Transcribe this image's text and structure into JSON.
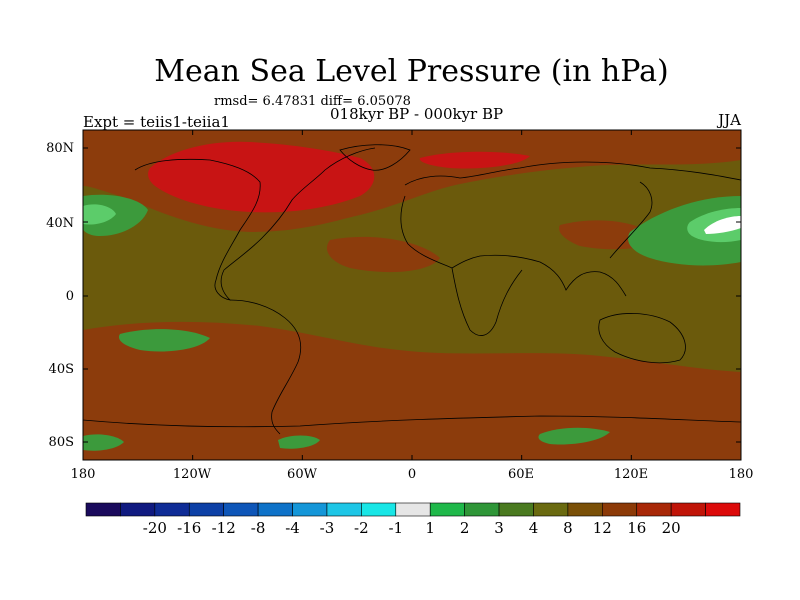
{
  "title": "Mean Sea Level Pressure (in hPa)",
  "stats": "rmsd= 6.47831 diff= 6.05078",
  "period": "018kyr BP - 000kyr BP",
  "experiment": "Expt = teiis1-teiia1",
  "season": "JJA",
  "lat_ticks": [
    "80N",
    "40N",
    "0",
    "40S",
    "80S"
  ],
  "lon_ticks": [
    "180",
    "120W",
    "60W",
    "0",
    "60E",
    "120E",
    "180"
  ],
  "colorbar": {
    "labels": [
      "-20",
      "-16",
      "-12",
      "-8",
      "-4",
      "-3",
      "-2",
      "-1",
      "1",
      "2",
      "3",
      "4",
      "8",
      "12",
      "16",
      "20"
    ],
    "colors": [
      "#1a0a5c",
      "#101a80",
      "#0f2c96",
      "#0d40a6",
      "#0e56b8",
      "#0e72c8",
      "#1496d8",
      "#1ec6e6",
      "#19e6e6",
      "#e6e6e6",
      "#1fb84a",
      "#2f9638",
      "#4a7a20",
      "#6a6a10",
      "#7a5008",
      "#8c3a08",
      "#a82808",
      "#c01408",
      "#dc0a0a"
    ]
  },
  "map": {
    "background_color": "#6b5a0c",
    "positive_color": "#8c3c0c",
    "strong_positive_color": "#c81414",
    "green_color": "#3c9a3c",
    "light_green_color": "#5ccc6a"
  }
}
